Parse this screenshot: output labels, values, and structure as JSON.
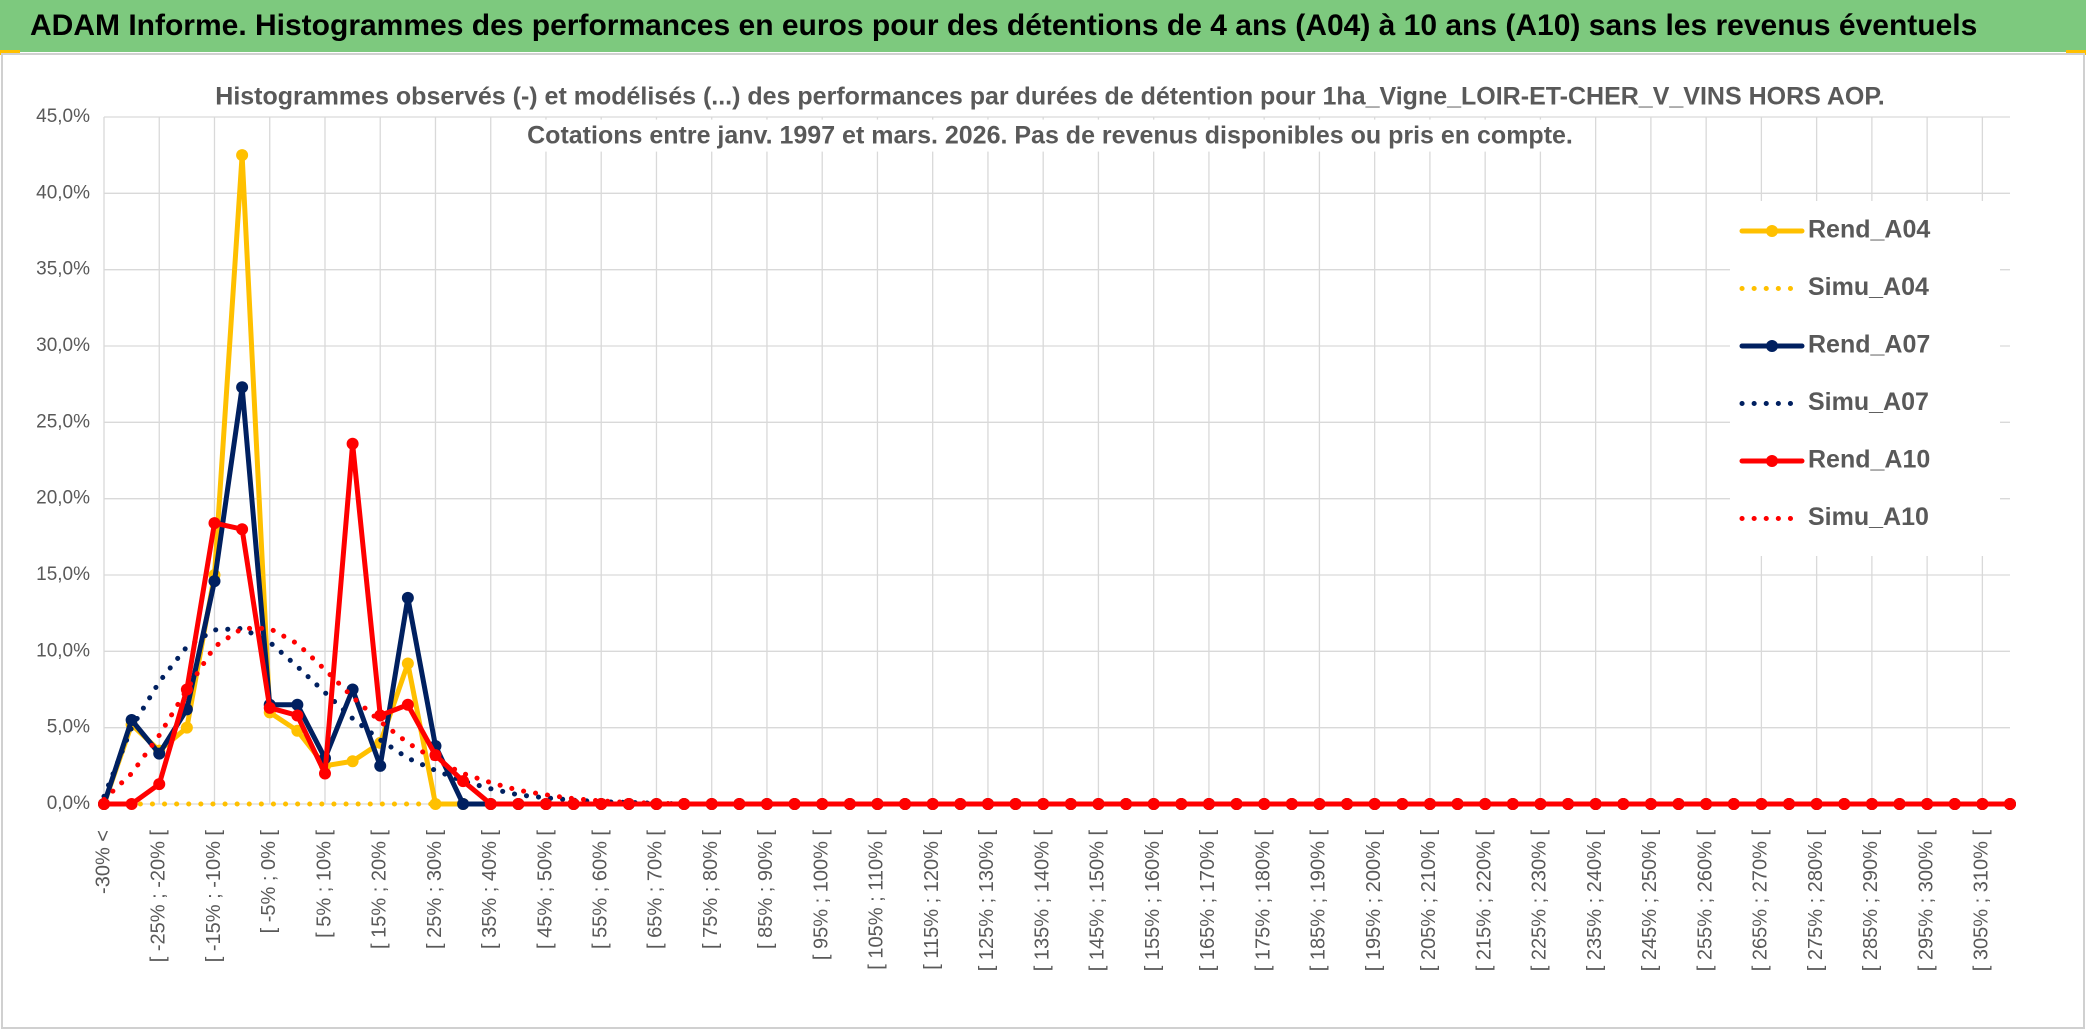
{
  "chart_data": {
    "type": "line",
    "page_title": "ADAM Informe. Histogrammes des performances en euros pour des détentions de 4 ans (A04) à 10 ans (A10) sans les revenus éventuels",
    "title": "Histogrammes observés (-) et modélisés (...) des performances par durées de détention pour 1ha_Vigne_LOIR-ET-CHER_V_VINS HORS AOP.",
    "subtitle": "Cotations entre janv. 1997 et mars. 2026. Pas de revenus disponibles ou pris en compte.",
    "categories": [
      "-30% <",
      null,
      "[ -25% ; -20% [",
      null,
      "[ -15% ; -10% [",
      null,
      "[ -5% ; 0% [",
      null,
      "[ 5% ; 10% [",
      null,
      "[ 15% ; 20% [",
      null,
      "[ 25% ; 30% [",
      null,
      "[ 35% ; 40% [",
      null,
      "[ 45% ; 50% [",
      null,
      "[ 55% ; 60% [",
      null,
      "[ 65% ; 70% [",
      null,
      "[ 75% ; 80% [",
      null,
      "[ 85% ; 90% [",
      null,
      "[ 95% ; 100% [",
      null,
      "[ 105% ; 110% [",
      null,
      "[ 115% ; 120% [",
      null,
      "[ 125% ; 130% [",
      null,
      "[ 135% ; 140% [",
      null,
      "[ 145% ; 150% [",
      null,
      "[ 155% ; 160% [",
      null,
      "[ 165% ; 170% [",
      null,
      "[ 175% ; 180% [",
      null,
      "[ 185% ; 190% [",
      null,
      "[ 195% ; 200% [",
      null,
      "[ 205% ; 210% [",
      null,
      "[ 215% ; 220% [",
      null,
      "[ 225% ; 230% [",
      null,
      "[ 235% ; 240% [",
      null,
      "[ 245% ; 250% [",
      null,
      "[ 255% ; 260% [",
      null,
      "[ 265% ; 270% [",
      null,
      "[ 275% ; 280% [",
      null,
      "[ 285% ; 290% [",
      null,
      "[ 295% ; 300% [",
      null,
      "[ 305% ; 310% [",
      null
    ],
    "series": [
      {
        "name": "Rend_A04",
        "color": "#FFC000",
        "style": "solid",
        "values": [
          0,
          5.2,
          3.5,
          5,
          15,
          42.5,
          6,
          4.8,
          2.5,
          2.8,
          4,
          9.2,
          0,
          0,
          0,
          0,
          0,
          0,
          0,
          0,
          0,
          0,
          0,
          0,
          0,
          0,
          0,
          0,
          0,
          0,
          0,
          0,
          0,
          0,
          0,
          0,
          0,
          0,
          0,
          0,
          0,
          0,
          0,
          0,
          0,
          0,
          0,
          0,
          0,
          0,
          0,
          0,
          0,
          0,
          0,
          0,
          0,
          0,
          0,
          0,
          0,
          0,
          0,
          0,
          0,
          0,
          0,
          0,
          0,
          0
        ]
      },
      {
        "name": "Simu_A04",
        "color": "#FFC000",
        "style": "dotted",
        "values": [
          0,
          0,
          0,
          0,
          0,
          0,
          0,
          0,
          0,
          0,
          0,
          0,
          0,
          0,
          0,
          0,
          0,
          0,
          0,
          0,
          0,
          0,
          0,
          0,
          0,
          0,
          0,
          0,
          0,
          0,
          0,
          0,
          0,
          0,
          0,
          0,
          0,
          0,
          0,
          0,
          0,
          0,
          0,
          0,
          0,
          0,
          0,
          0,
          0,
          0,
          0,
          0,
          0,
          0,
          0,
          0,
          0,
          0,
          0,
          0,
          0,
          0,
          0,
          0,
          0,
          0,
          0,
          0,
          0,
          0
        ]
      },
      {
        "name": "Rend_A07",
        "color": "#002060",
        "style": "solid",
        "values": [
          0,
          5.5,
          3.3,
          6.2,
          14.6,
          27.3,
          6.5,
          6.5,
          3,
          7.5,
          2.5,
          13.5,
          3.8,
          0,
          0,
          0,
          0,
          0,
          0,
          0,
          0,
          0,
          0,
          0,
          0,
          0,
          0,
          0,
          0,
          0,
          0,
          0,
          0,
          0,
          0,
          0,
          0,
          0,
          0,
          0,
          0,
          0,
          0,
          0,
          0,
          0,
          0,
          0,
          0,
          0,
          0,
          0,
          0,
          0,
          0,
          0,
          0,
          0,
          0,
          0,
          0,
          0,
          0,
          0,
          0,
          0,
          0,
          0,
          0,
          0
        ]
      },
      {
        "name": "Simu_A07",
        "color": "#002060",
        "style": "dotted",
        "values": [
          0.5,
          5,
          8,
          10.3,
          11.4,
          11.5,
          10.6,
          9,
          7.3,
          5.6,
          4.2,
          3,
          2.2,
          1.5,
          1,
          0.6,
          0.4,
          0.25,
          0.15,
          0.1,
          0.05,
          0,
          0,
          0,
          0,
          0,
          0,
          0,
          0,
          0,
          0,
          0,
          0,
          0,
          0,
          0,
          0,
          0,
          0,
          0,
          0,
          0,
          0,
          0,
          0,
          0,
          0,
          0,
          0,
          0,
          0,
          0,
          0,
          0,
          0,
          0,
          0,
          0,
          0,
          0,
          0,
          0,
          0,
          0,
          0,
          0,
          0,
          0,
          0,
          0
        ]
      },
      {
        "name": "Rend_A10",
        "color": "#FF0000",
        "style": "solid",
        "values": [
          0,
          0,
          1.3,
          7.5,
          18.4,
          18,
          6.3,
          5.8,
          2,
          23.6,
          5.8,
          6.5,
          3.2,
          1.5,
          0,
          0,
          0,
          0,
          0,
          0,
          0,
          0,
          0,
          0,
          0,
          0,
          0,
          0,
          0,
          0,
          0,
          0,
          0,
          0,
          0,
          0,
          0,
          0,
          0,
          0,
          0,
          0,
          0,
          0,
          0,
          0,
          0,
          0,
          0,
          0,
          0,
          0,
          0,
          0,
          0,
          0,
          0,
          0,
          0,
          0,
          0,
          0,
          0,
          0,
          0,
          0,
          0,
          0,
          0,
          0
        ]
      },
      {
        "name": "Simu_A10",
        "color": "#FF0000",
        "style": "dotted",
        "values": [
          0.3,
          2,
          4.5,
          7.5,
          10.3,
          11.5,
          11.5,
          10.5,
          8.8,
          7,
          5.4,
          4,
          2.9,
          2,
          1.4,
          0.9,
          0.6,
          0.35,
          0.2,
          0.1,
          0.05,
          0,
          0,
          0,
          0,
          0,
          0,
          0,
          0,
          0,
          0,
          0,
          0,
          0,
          0,
          0,
          0,
          0,
          0,
          0,
          0,
          0,
          0,
          0,
          0,
          0,
          0,
          0,
          0,
          0,
          0,
          0,
          0,
          0,
          0,
          0,
          0,
          0,
          0,
          0,
          0,
          0,
          0,
          0,
          0,
          0,
          0,
          0,
          0,
          0
        ]
      }
    ],
    "ylim": [
      0,
      45
    ],
    "yticks": [
      {
        "value": 0,
        "label": "0,0%"
      },
      {
        "value": 5,
        "label": "5,0%"
      },
      {
        "value": 10,
        "label": "10,0%"
      },
      {
        "value": 15,
        "label": "15,0%"
      },
      {
        "value": 20,
        "label": "20,0%"
      },
      {
        "value": 25,
        "label": "25,0%"
      },
      {
        "value": 30,
        "label": "30,0%"
      },
      {
        "value": 35,
        "label": "35,0%"
      },
      {
        "value": 40,
        "label": "40,0%"
      },
      {
        "value": 45,
        "label": "45,0%"
      }
    ],
    "grid": true,
    "legend": "right"
  }
}
